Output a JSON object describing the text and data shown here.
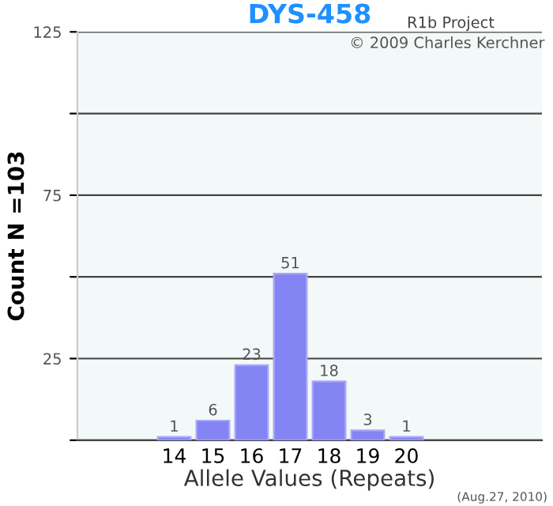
{
  "chart_data": {
    "type": "bar",
    "title": "DYS-458",
    "xlabel": "Allele Values (Repeats)",
    "ylabel": "Count N =103",
    "categories": [
      null,
      null,
      "14",
      "15",
      "16",
      "17",
      "18",
      "19",
      "20",
      null,
      null,
      null
    ],
    "values": [
      null,
      null,
      1,
      6,
      23,
      51,
      18,
      3,
      1,
      null,
      null,
      null
    ],
    "color": "#8484f4",
    "data_labels": true,
    "ylim": [
      0,
      125
    ],
    "yticks": [
      {
        "value": 0,
        "label": null
      },
      25,
      {
        "value": 50,
        "label": null
      },
      75,
      {
        "value": 100,
        "label": null
      },
      125
    ],
    "grid": "y",
    "annotations": [
      "R1b Project",
      "© 2009 Charles Kerchner",
      "(Aug.27, 2010)"
    ]
  }
}
